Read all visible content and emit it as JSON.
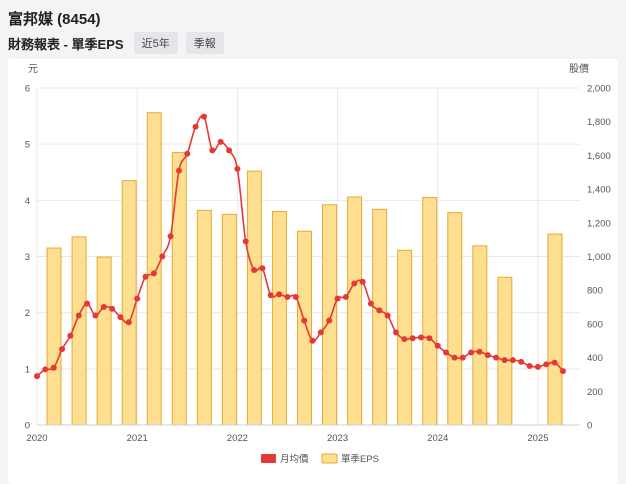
{
  "header": {
    "title": "富邦媒 (8454)",
    "subtitle": "財務報表 - 單季EPS",
    "buttons": [
      "近5年",
      "季報"
    ]
  },
  "colors": {
    "bar_fill": "#fddf8f",
    "bar_stroke": "#e6a93a",
    "line": "#e53935",
    "grid": "#e9e9e9"
  },
  "chart_data": {
    "type": "bar+line",
    "left_axis_unit": "元",
    "right_axis_unit": "股價",
    "left_ticks": [
      "0",
      "1",
      "2",
      "3",
      "4",
      "5",
      "6"
    ],
    "right_ticks": [
      "0",
      "200",
      "400",
      "600",
      "800",
      "1,000",
      "1,200",
      "1,400",
      "1,600",
      "1,800",
      "2,000"
    ],
    "ylim_left": [
      0,
      6
    ],
    "ylim_right": [
      0,
      2000
    ],
    "x_ticks": [
      "2020",
      "2021",
      "2022",
      "2023",
      "2024",
      "2025"
    ],
    "x_range": [
      2020.0,
      2025.42
    ],
    "legend_position": "bottom-center",
    "series": [
      {
        "name": "月均價",
        "kind": "line",
        "axis": "right",
        "x": [
          2020.0,
          2020.083,
          2020.167,
          2020.25,
          2020.333,
          2020.417,
          2020.5,
          2020.583,
          2020.667,
          2020.75,
          2020.833,
          2020.917,
          2021.0,
          2021.083,
          2021.167,
          2021.25,
          2021.333,
          2021.417,
          2021.5,
          2021.583,
          2021.667,
          2021.75,
          2021.833,
          2021.917,
          2022.0,
          2022.083,
          2022.167,
          2022.25,
          2022.333,
          2022.417,
          2022.5,
          2022.583,
          2022.667,
          2022.75,
          2022.833,
          2022.917,
          2023.0,
          2023.083,
          2023.167,
          2023.25,
          2023.333,
          2023.417,
          2023.5,
          2023.583,
          2023.667,
          2023.75,
          2023.833,
          2023.917,
          2024.0,
          2024.083,
          2024.167,
          2024.25,
          2024.333,
          2024.417,
          2024.5,
          2024.583,
          2024.667,
          2024.75,
          2024.833,
          2024.917,
          2025.0,
          2025.083,
          2025.167,
          2025.25
        ],
        "values": [
          290,
          330,
          340,
          450,
          530,
          650,
          720,
          650,
          700,
          690,
          640,
          610,
          750,
          880,
          900,
          1000,
          1120,
          1510,
          1610,
          1770,
          1830,
          1630,
          1680,
          1630,
          1520,
          1090,
          920,
          930,
          770,
          775,
          760,
          760,
          620,
          500,
          550,
          620,
          750,
          760,
          840,
          850,
          720,
          680,
          650,
          550,
          510,
          515,
          520,
          515,
          470,
          430,
          400,
          400,
          430,
          435,
          415,
          400,
          385,
          385,
          375,
          350,
          345,
          360,
          370,
          320
        ]
      },
      {
        "name": "單季EPS",
        "kind": "bar",
        "axis": "left",
        "x": [
          2020.17,
          2020.42,
          2020.67,
          2020.92,
          2021.17,
          2021.42,
          2021.67,
          2021.92,
          2022.17,
          2022.42,
          2022.67,
          2022.92,
          2023.17,
          2023.42,
          2023.67,
          2023.92,
          2024.17,
          2024.42,
          2024.67,
          2025.17
        ],
        "values": [
          3.15,
          3.35,
          2.99,
          4.35,
          5.56,
          4.85,
          3.82,
          3.75,
          4.52,
          3.8,
          3.45,
          3.92,
          4.06,
          3.84,
          3.11,
          4.05,
          3.78,
          3.19,
          2.63,
          3.4
        ]
      }
    ]
  }
}
